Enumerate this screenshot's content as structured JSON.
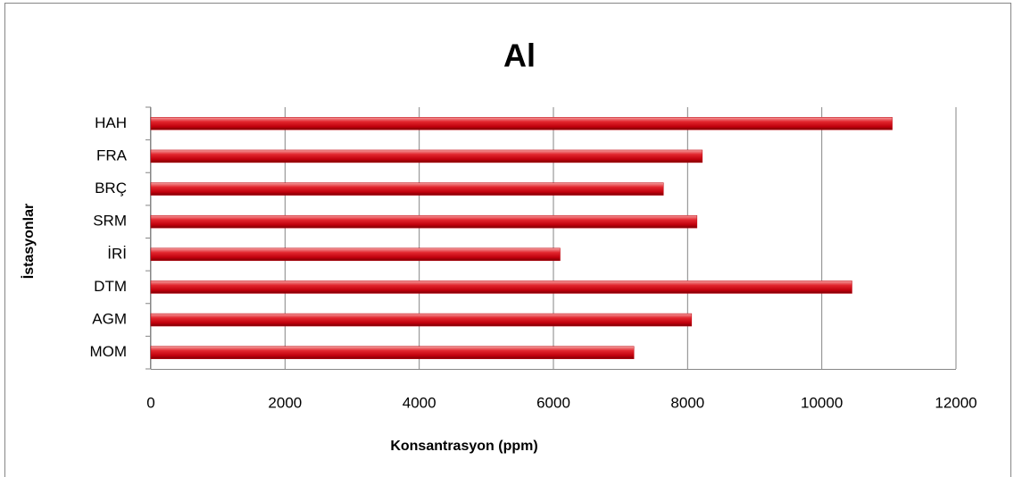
{
  "chart_data": {
    "type": "bar",
    "orientation": "horizontal",
    "title": "Al",
    "xlabel": "Konsantrasyon (ppm)",
    "ylabel": "İstasyonlar",
    "categories": [
      "MOM",
      "AGM",
      "DTM",
      "İRİ",
      "SRM",
      "BRÇ",
      "FRA",
      "HAH"
    ],
    "values": [
      7200,
      8060,
      10450,
      6100,
      8140,
      7640,
      8220,
      11050
    ],
    "color": "#c0000c",
    "xlim": [
      0,
      12000
    ],
    "xticks": [
      0,
      2000,
      4000,
      6000,
      8000,
      10000,
      12000
    ],
    "grid": true
  }
}
